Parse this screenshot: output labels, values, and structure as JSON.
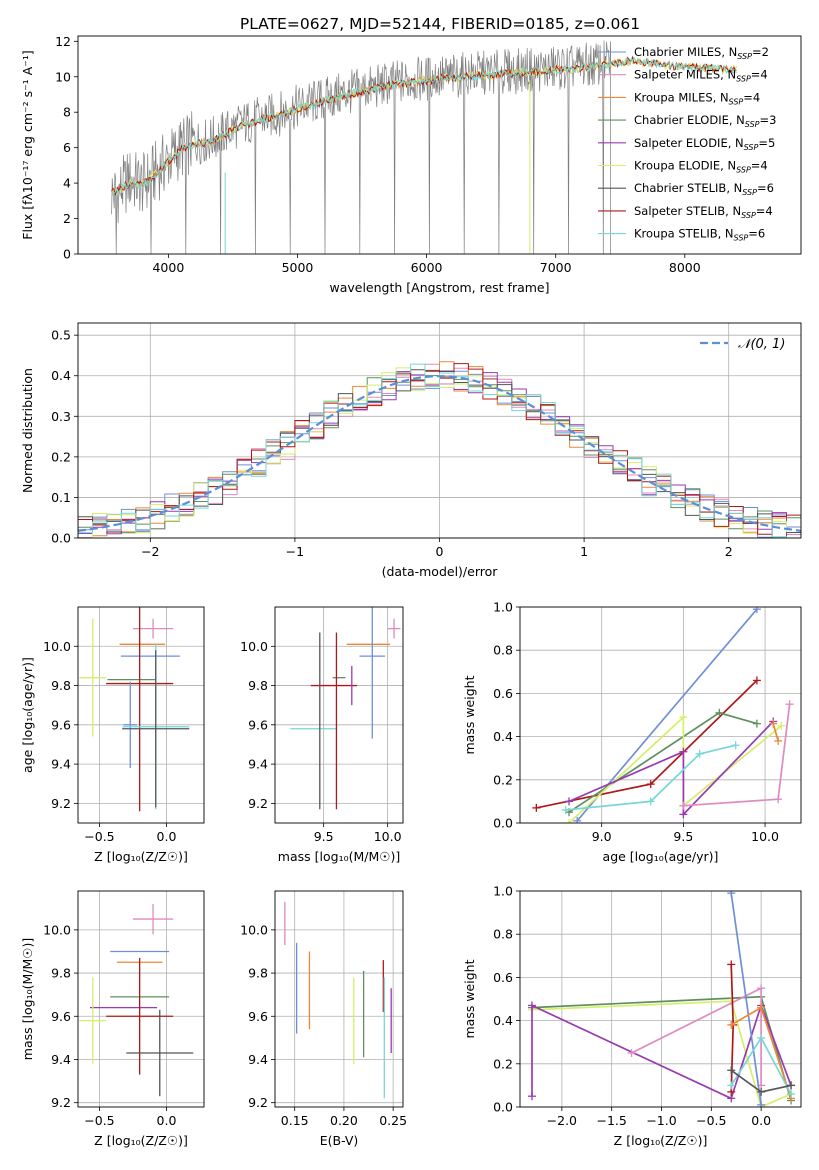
{
  "figure_title": "PLATE=0627, MJD=52144, FIBERID=0185, z=0.061",
  "colors": {
    "chabrier_miles": "#6f8fd8",
    "salpeter_miles": "#e08ac0",
    "kroupa_miles": "#e88a3a",
    "chabrier_elodie": "#5e8f5e",
    "salpeter_elodie": "#9a3ab0",
    "kroupa_elodie": "#d6ee6a",
    "chabrier_stelib": "#555555",
    "salpeter_stelib": "#b01818",
    "kroupa_stelib": "#78d6d6",
    "data": "#7f7f7f"
  },
  "legend_spectrum": [
    {
      "name": "Chabrier MILES, N",
      "sub": "SSP",
      "tail": "=2",
      "color": "#6f8fd8"
    },
    {
      "name": "Salpeter MILES, N",
      "sub": "SSP",
      "tail": "=4",
      "color": "#e08ac0"
    },
    {
      "name": "Kroupa MILES, N",
      "sub": "SSP",
      "tail": "=4",
      "color": "#e88a3a"
    },
    {
      "name": "Chabrier ELODIE, N",
      "sub": "SSP",
      "tail": "=3",
      "color": "#5e8f5e"
    },
    {
      "name": "Salpeter ELODIE, N",
      "sub": "SSP",
      "tail": "=5",
      "color": "#9a3ab0"
    },
    {
      "name": "Kroupa ELODIE, N",
      "sub": "SSP",
      "tail": "=4",
      "color": "#d6ee6a"
    },
    {
      "name": "Chabrier STELIB, N",
      "sub": "SSP",
      "tail": "=6",
      "color": "#555555"
    },
    {
      "name": "Salpeter STELIB, N",
      "sub": "SSP",
      "tail": "=4",
      "color": "#b01818"
    },
    {
      "name": "Kroupa STELIB, N",
      "sub": "SSP",
      "tail": "=6",
      "color": "#78d6d6"
    }
  ],
  "chart_data": [
    {
      "id": "spectrum",
      "type": "line",
      "xlabel": "wavelength [Angstrom, rest frame]",
      "ylabel": "Flux [fλ10⁻¹⁷ erg cm⁻² s⁻¹ A⁻¹]",
      "xlim": [
        3300,
        8900
      ],
      "ylim": [
        0,
        12.3
      ],
      "xticks": [
        4000,
        5000,
        6000,
        7000,
        8000
      ],
      "yticks": [
        0,
        2,
        4,
        6,
        8,
        10,
        12
      ],
      "grid": false,
      "legend_position": "right",
      "series": [
        {
          "name": "data",
          "x": [
            3600,
            3700,
            3800,
            3900,
            4000,
            4100,
            4200,
            4300,
            4400,
            4500,
            4600,
            4700,
            4800,
            4900,
            5000,
            5100,
            5200,
            5300,
            5400,
            5500,
            5600,
            5700,
            5800,
            5900,
            6000,
            6100,
            6200,
            6300,
            6400,
            6500,
            6600,
            6700,
            6800,
            6900,
            7000,
            7100,
            7200,
            7300,
            7400,
            7420
          ],
          "y": [
            3.4,
            4.2,
            3.9,
            4.6,
            5.3,
            6.0,
            6.3,
            6.4,
            6.7,
            7.1,
            7.4,
            7.6,
            7.8,
            8.0,
            8.3,
            8.5,
            8.7,
            8.9,
            9.1,
            9.3,
            9.4,
            9.6,
            9.7,
            9.8,
            9.9,
            10.0,
            10.0,
            10.1,
            10.2,
            10.2,
            10.3,
            10.3,
            10.4,
            10.4,
            10.5,
            10.5,
            10.6,
            10.7,
            10.8,
            10.9
          ]
        },
        {
          "name": "model",
          "x": [
            3600,
            3700,
            3800,
            3900,
            4000,
            4100,
            4200,
            4300,
            4400,
            4500,
            4600,
            4700,
            4800,
            4900,
            5000,
            5100,
            5200,
            5300,
            5400,
            5500,
            5600,
            5700,
            5800,
            5900,
            6000,
            6100,
            6200,
            6300,
            6400,
            6500,
            6600,
            6700,
            6800,
            6900,
            7000,
            7100,
            7200,
            7300,
            7400,
            7500,
            7600,
            7700,
            7800,
            7900,
            8000,
            8100,
            8200,
            8300
          ],
          "y": [
            3.5,
            4.0,
            3.9,
            4.5,
            5.2,
            5.9,
            6.2,
            6.3,
            6.6,
            7.0,
            7.3,
            7.5,
            7.7,
            7.9,
            8.2,
            8.4,
            8.6,
            8.8,
            9.0,
            9.2,
            9.3,
            9.5,
            9.6,
            9.7,
            9.8,
            9.9,
            9.9,
            10.0,
            10.1,
            10.1,
            10.2,
            10.2,
            10.3,
            10.3,
            10.4,
            10.4,
            10.5,
            10.6,
            10.7,
            10.8,
            10.9,
            10.8,
            10.7,
            10.6,
            10.6,
            10.5,
            10.5,
            10.4
          ]
        }
      ]
    },
    {
      "id": "residuals",
      "type": "line",
      "xlabel": "(data-model)/error",
      "ylabel": "Normed distribution",
      "xlim": [
        -2.5,
        2.5
      ],
      "ylim": [
        0,
        0.53
      ],
      "xticks": [
        -2,
        -1,
        0,
        1,
        2
      ],
      "yticks": [
        0.0,
        0.1,
        0.2,
        0.3,
        0.4,
        0.5
      ],
      "grid": true,
      "legend": [
        {
          "name": "𝒩(0, 1)",
          "color": "#5b8fd8"
        }
      ],
      "legend_position": "top-right",
      "series": [
        {
          "name": "𝒩(0, 1)",
          "style": "dashed",
          "mu": 0,
          "sigma": 1
        }
      ]
    },
    {
      "id": "age_vs_Z",
      "type": "scatter",
      "xlabel": "Z [log₁₀(Z/Z☉)]",
      "ylabel": "age  [log₁₀(age/yr)]",
      "xlim": [
        -0.66,
        0.28
      ],
      "ylim": [
        9.1,
        10.2
      ],
      "xticks": [
        -0.5,
        0.0
      ],
      "yticks": [
        9.2,
        9.4,
        9.6,
        9.8,
        10.0
      ],
      "grid": true,
      "points": [
        {
          "x": -0.1,
          "y": 10.09,
          "xerr": 0.15,
          "yerr": 0.05,
          "color": "#e08ac0"
        },
        {
          "x": -0.18,
          "y": 10.01,
          "xerr": 0.17,
          "yerr": 0.0,
          "color": "#e88a3a"
        },
        {
          "x": -0.12,
          "y": 9.95,
          "xerr": 0.22,
          "yerr": 0.0,
          "color": "#6f8fd8"
        },
        {
          "x": -0.55,
          "y": 9.84,
          "xerr": 0.1,
          "yerr": 0.3,
          "color": "#d6ee6a"
        },
        {
          "x": -0.26,
          "y": 9.83,
          "xerr": 0.18,
          "yerr": 0.0,
          "color": "#5e8f5e"
        },
        {
          "x": -0.2,
          "y": 9.81,
          "xerr": 0.25,
          "yerr": 0.65,
          "color": "#b01818"
        },
        {
          "x": -0.27,
          "y": 9.6,
          "xerr": 0.05,
          "yerr": 0.22,
          "color": "#6f8fd8"
        },
        {
          "x": -0.08,
          "y": 9.59,
          "xerr": 0.25,
          "yerr": 0.42,
          "color": "#78d6d6"
        },
        {
          "x": -0.08,
          "y": 9.58,
          "xerr": 0.25,
          "yerr": 0.4,
          "color": "#555555"
        }
      ]
    },
    {
      "id": "age_vs_mass",
      "type": "scatter",
      "xlabel": "mass [log₁₀(M/M☉)]",
      "ylabel": "",
      "xlim": [
        9.12,
        10.12
      ],
      "ylim": [
        9.1,
        10.2
      ],
      "xticks": [
        9.5,
        10.0
      ],
      "yticks": [
        9.2,
        9.4,
        9.6,
        9.8,
        10.0
      ],
      "grid": true,
      "points": [
        {
          "x": 10.05,
          "y": 10.09,
          "xerr": 0.05,
          "yerr": 0.05,
          "color": "#e08ac0"
        },
        {
          "x": 9.85,
          "y": 10.01,
          "xerr": 0.17,
          "yerr": 0.0,
          "color": "#e88a3a"
        },
        {
          "x": 9.88,
          "y": 9.95,
          "xerr": 0.1,
          "yerr": 0.42,
          "color": "#6f8fd8"
        },
        {
          "x": 9.62,
          "y": 9.84,
          "xerr": 0.05,
          "yerr": 0.0,
          "color": "#5e8f5e"
        },
        {
          "x": 9.58,
          "y": 9.8,
          "xerr": 0.18,
          "yerr": 0.0,
          "color": "#b01818"
        },
        {
          "x": 9.42,
          "y": 9.58,
          "xerr": 0.18,
          "yerr": 0.0,
          "color": "#78d6d6"
        },
        {
          "x": 9.47,
          "y": 9.62,
          "xerr": 0.0,
          "yerr": 0.45,
          "color": "#555555"
        },
        {
          "x": 9.6,
          "y": 9.62,
          "xerr": 0.0,
          "yerr": 0.45,
          "color": "#b01818"
        },
        {
          "x": 9.72,
          "y": 9.8,
          "xerr": 0.0,
          "yerr": 0.1,
          "color": "#9a3ab0"
        }
      ]
    },
    {
      "id": "massweight_vs_age",
      "type": "line",
      "xlabel": "age  [log₁₀(age/yr)]",
      "ylabel": "mass weight",
      "xlim": [
        8.5,
        10.22
      ],
      "ylim": [
        0,
        1.0
      ],
      "xticks": [
        9.0,
        9.5,
        10.0
      ],
      "yticks": [
        0.0,
        0.2,
        0.4,
        0.6,
        0.8,
        1.0
      ],
      "grid": true,
      "series": [
        {
          "name": "Chabrier MILES",
          "color": "#6f8fd8",
          "x": [
            8.85,
            9.95
          ],
          "y": [
            0.01,
            0.99
          ]
        },
        {
          "name": "Salpeter STELIB",
          "color": "#b01818",
          "x": [
            8.6,
            9.3,
            9.95
          ],
          "y": [
            0.07,
            0.18,
            0.66
          ]
        },
        {
          "name": "Chabrier ELODIE",
          "color": "#5e8f5e",
          "x": [
            8.8,
            9.72,
            9.95
          ],
          "y": [
            0.05,
            0.51,
            0.46
          ]
        },
        {
          "name": "Kroupa ELODIE",
          "color": "#d6ee6a",
          "x": [
            8.8,
            9.5,
            9.5,
            10.1
          ],
          "y": [
            0.0,
            0.49,
            0.08,
            0.45
          ]
        },
        {
          "name": "Salpeter ELODIE",
          "color": "#9a3ab0",
          "x": [
            8.8,
            9.5,
            9.5,
            10.05
          ],
          "y": [
            0.1,
            0.33,
            0.04,
            0.47
          ]
        },
        {
          "name": "Kroupa STELIB",
          "color": "#78d6d6",
          "x": [
            8.78,
            9.3,
            9.6,
            9.82
          ],
          "y": [
            0.06,
            0.1,
            0.32,
            0.36
          ]
        },
        {
          "name": "Salpeter MILES",
          "color": "#e08ac0",
          "x": [
            9.5,
            10.08,
            10.15
          ],
          "y": [
            0.08,
            0.11,
            0.55
          ]
        },
        {
          "name": "Kroupa MILES",
          "color": "#e88a3a",
          "x": [
            10.05,
            10.08
          ],
          "y": [
            0.46,
            0.38
          ]
        }
      ]
    },
    {
      "id": "mass_vs_Z",
      "type": "scatter",
      "xlabel": "Z [log₁₀(Z/Z☉)]",
      "ylabel": "mass [log₁₀(M/M☉)]",
      "xlim": [
        -0.66,
        0.28
      ],
      "ylim": [
        9.18,
        10.18
      ],
      "xticks": [
        -0.5,
        0.0
      ],
      "yticks": [
        9.2,
        9.4,
        9.6,
        9.8,
        10.0
      ],
      "grid": true,
      "points": [
        {
          "x": -0.1,
          "y": 10.05,
          "xerr": 0.15,
          "yerr": 0.07,
          "color": "#e08ac0"
        },
        {
          "x": -0.2,
          "y": 9.9,
          "xerr": 0.22,
          "yerr": 0.0,
          "color": "#6f8fd8"
        },
        {
          "x": -0.2,
          "y": 9.85,
          "xerr": 0.17,
          "yerr": 0.0,
          "color": "#e88a3a"
        },
        {
          "x": -0.2,
          "y": 9.69,
          "xerr": 0.22,
          "yerr": 0.0,
          "color": "#5e8f5e"
        },
        {
          "x": -0.32,
          "y": 9.64,
          "xerr": 0.25,
          "yerr": 0.0,
          "color": "#9a3ab0"
        },
        {
          "x": -0.2,
          "y": 9.6,
          "xerr": 0.25,
          "yerr": 0.27,
          "color": "#b01818"
        },
        {
          "x": -0.55,
          "y": 9.58,
          "xerr": 0.1,
          "yerr": 0.2,
          "color": "#d6ee6a"
        },
        {
          "x": -0.05,
          "y": 9.43,
          "xerr": 0.25,
          "yerr": 0.2,
          "color": "#555555"
        }
      ]
    },
    {
      "id": "mass_vs_ebv",
      "type": "scatter",
      "xlabel": "E(B-V)",
      "ylabel": "",
      "xlim": [
        0.13,
        0.26
      ],
      "ylim": [
        9.18,
        10.18
      ],
      "xticks": [
        0.15,
        0.2,
        0.25
      ],
      "yticks": [
        9.2,
        9.4,
        9.6,
        9.8,
        10.0
      ],
      "grid": true,
      "points": [
        {
          "x": 0.14,
          "y": 10.03,
          "xerr": 0.0,
          "yerr": 0.1,
          "color": "#e08ac0"
        },
        {
          "x": 0.152,
          "y": 9.73,
          "xerr": 0.0,
          "yerr": 0.21,
          "color": "#6f8fd8"
        },
        {
          "x": 0.165,
          "y": 9.72,
          "xerr": 0.0,
          "yerr": 0.18,
          "color": "#e88a3a"
        },
        {
          "x": 0.21,
          "y": 9.58,
          "xerr": 0.0,
          "yerr": 0.2,
          "color": "#d6ee6a"
        },
        {
          "x": 0.22,
          "y": 9.61,
          "xerr": 0.0,
          "yerr": 0.2,
          "color": "#5e8f5e"
        },
        {
          "x": 0.24,
          "y": 9.74,
          "xerr": 0.0,
          "yerr": 0.12,
          "color": "#b01818"
        },
        {
          "x": 0.241,
          "y": 9.5,
          "xerr": 0.0,
          "yerr": 0.28,
          "color": "#78d6d6"
        },
        {
          "x": 0.248,
          "y": 9.58,
          "xerr": 0.0,
          "yerr": 0.15,
          "color": "#9a3ab0"
        }
      ]
    },
    {
      "id": "massweight_vs_Z",
      "type": "line",
      "xlabel": "Z [log₁₀(Z/Z☉)]",
      "ylabel": "mass weight",
      "xlim": [
        -2.42,
        0.4
      ],
      "ylim": [
        0,
        1.0
      ],
      "xticks": [
        -2.0,
        -1.5,
        -1.0,
        -0.5,
        0.0
      ],
      "yticks": [
        0.0,
        0.2,
        0.4,
        0.6,
        0.8,
        1.0
      ],
      "grid": true,
      "series": [
        {
          "name": "Chabrier ELODIE",
          "color": "#5e8f5e",
          "x": [
            -2.3,
            0.0,
            0.3
          ],
          "y": [
            0.46,
            0.51,
            0.03
          ]
        },
        {
          "name": "Kroupa ELODIE",
          "color": "#d6ee6a",
          "x": [
            -2.3,
            -0.3,
            0.0,
            0.3
          ],
          "y": [
            0.45,
            0.49,
            0.0,
            0.06
          ]
        },
        {
          "name": "Salpeter ELODIE",
          "color": "#9a3ab0",
          "x": [
            -2.3,
            -2.3,
            -0.3,
            0.0,
            0.3
          ],
          "y": [
            0.05,
            0.47,
            0.04,
            0.47,
            0.1
          ]
        },
        {
          "name": "Salpeter MILES",
          "color": "#e08ac0",
          "x": [
            -1.3,
            0.0,
            0.0
          ],
          "y": [
            0.25,
            0.55,
            0.1
          ]
        },
        {
          "name": "Chabrier MILES",
          "color": "#6f8fd8",
          "x": [
            -0.3,
            0.0
          ],
          "y": [
            0.99,
            0.01
          ]
        },
        {
          "name": "Salpeter STELIB",
          "color": "#b01818",
          "x": [
            -0.3,
            -0.28,
            -0.3
          ],
          "y": [
            0.66,
            0.38,
            0.07
          ]
        },
        {
          "name": "Kroupa MILES",
          "color": "#e88a3a",
          "x": [
            -0.3,
            0.0,
            0.3
          ],
          "y": [
            0.38,
            0.46,
            0.04
          ]
        },
        {
          "name": "Kroupa STELIB",
          "color": "#78d6d6",
          "x": [
            -0.3,
            0.0,
            0.3
          ],
          "y": [
            0.1,
            0.32,
            0.06
          ]
        },
        {
          "name": "Chabrier STELIB",
          "color": "#555555",
          "x": [
            -0.3,
            0.0,
            0.3
          ],
          "y": [
            0.17,
            0.07,
            0.1
          ]
        }
      ]
    }
  ]
}
